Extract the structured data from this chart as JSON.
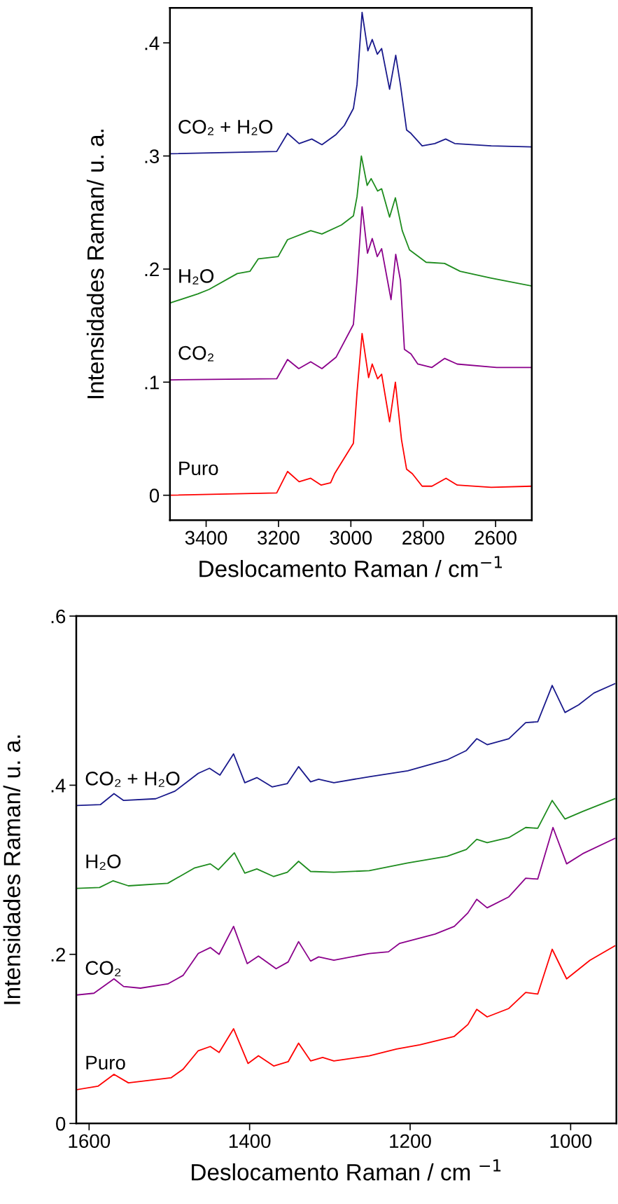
{
  "chart_data": [
    {
      "type": "line",
      "xlabel": "Deslocamento Raman / cm$^{−1}$",
      "ylabel": "Intensidades Raman/ u. a.",
      "xlim": [
        3500,
        2500
      ],
      "ylim": [
        -0.022,
        0.431
      ],
      "xticks": [
        3400,
        3200,
        3000,
        2800,
        2600
      ],
      "yticks": [
        0,
        {
          "value": 0.1,
          "label": ".1"
        },
        {
          "value": 0.2,
          "label": ".2"
        },
        {
          "value": 0.3,
          "label": ".3"
        },
        {
          "value": 0.4,
          "label": ".4"
        }
      ],
      "grid": false,
      "legend": false,
      "marker": "none",
      "line_style": "solid",
      "series": [
        {
          "name": "Puro",
          "color": "#ff0000",
          "x": [
            3500,
            3205,
            3175,
            3143,
            3111,
            3082,
            3056,
            3045,
            2993,
            2983,
            2969,
            2951,
            2941,
            2926,
            2915,
            2893,
            2877,
            2860,
            2846,
            2830,
            2803,
            2776,
            2737,
            2706,
            2612,
            2500
          ],
          "values": [
            0.0,
            0.002,
            0.021,
            0.012,
            0.015,
            0.009,
            0.011,
            0.019,
            0.046,
            0.091,
            0.143,
            0.104,
            0.116,
            0.103,
            0.107,
            0.065,
            0.1,
            0.049,
            0.023,
            0.019,
            0.008,
            0.008,
            0.015,
            0.009,
            0.007,
            0.008
          ]
        },
        {
          "name": "CO₂",
          "color": "#8b008b",
          "x": [
            3500,
            3205,
            3175,
            3144,
            3111,
            3080,
            3041,
            2993,
            2983,
            2969,
            2954,
            2941,
            2927,
            2915,
            2889,
            2876,
            2863,
            2852,
            2834,
            2815,
            2776,
            2741,
            2706,
            2597,
            2500
          ],
          "values": [
            0.102,
            0.103,
            0.12,
            0.112,
            0.118,
            0.112,
            0.122,
            0.151,
            0.19,
            0.255,
            0.214,
            0.227,
            0.211,
            0.218,
            0.173,
            0.213,
            0.19,
            0.129,
            0.125,
            0.116,
            0.113,
            0.121,
            0.116,
            0.113,
            0.113
          ]
        },
        {
          "name": "H₂O",
          "color": "#1e8c1e",
          "x": [
            3500,
            3423,
            3392,
            3314,
            3279,
            3256,
            3201,
            3175,
            3111,
            3080,
            3026,
            2993,
            2983,
            2971,
            2955,
            2944,
            2926,
            2915,
            2893,
            2877,
            2858,
            2838,
            2792,
            2741,
            2698,
            2612,
            2500
          ],
          "values": [
            0.17,
            0.178,
            0.182,
            0.196,
            0.198,
            0.209,
            0.211,
            0.226,
            0.234,
            0.231,
            0.239,
            0.247,
            0.264,
            0.3,
            0.274,
            0.28,
            0.269,
            0.271,
            0.246,
            0.263,
            0.234,
            0.217,
            0.206,
            0.205,
            0.198,
            0.192,
            0.185
          ]
        },
        {
          "name": "CO₂ + H₂O",
          "color": "#1a1a8c",
          "x": [
            3500,
            3205,
            3175,
            3143,
            3108,
            3080,
            3041,
            3018,
            2993,
            2983,
            2969,
            2953,
            2941,
            2927,
            2915,
            2893,
            2876,
            2863,
            2846,
            2834,
            2803,
            2768,
            2738,
            2713,
            2612,
            2500
          ],
          "values": [
            0.302,
            0.304,
            0.32,
            0.311,
            0.315,
            0.31,
            0.319,
            0.327,
            0.342,
            0.363,
            0.427,
            0.393,
            0.403,
            0.39,
            0.395,
            0.359,
            0.389,
            0.363,
            0.323,
            0.32,
            0.309,
            0.311,
            0.315,
            0.311,
            0.309,
            0.308
          ]
        }
      ]
    },
    {
      "type": "line",
      "xlabel": "Deslocamento Raman / cm $^{−1}$",
      "ylabel": "Intensidades Raman/ u. a.",
      "xlim": [
        1616,
        943
      ],
      "ylim": [
        0,
        0.6
      ],
      "xticks": [
        1600,
        1400,
        1200,
        1000
      ],
      "yticks": [
        0,
        {
          "value": 0.2,
          "label": ".2"
        },
        {
          "value": 0.4,
          "label": ".4"
        },
        {
          "value": 0.6,
          "label": ".6"
        }
      ],
      "grid": false,
      "legend": false,
      "marker": "none",
      "line_style": "solid",
      "series": [
        {
          "name": "Puro",
          "color": "#ff0000",
          "x": [
            1615,
            1589,
            1569,
            1551,
            1498,
            1483,
            1464,
            1449,
            1438,
            1420,
            1402,
            1389,
            1370,
            1352,
            1339,
            1324,
            1309,
            1295,
            1251,
            1217,
            1188,
            1145,
            1128,
            1117,
            1104,
            1077,
            1056,
            1041,
            1023,
            1005,
            976,
            945
          ],
          "values": [
            0.04,
            0.044,
            0.058,
            0.048,
            0.054,
            0.064,
            0.086,
            0.091,
            0.084,
            0.112,
            0.071,
            0.08,
            0.068,
            0.073,
            0.095,
            0.074,
            0.078,
            0.074,
            0.08,
            0.088,
            0.093,
            0.103,
            0.117,
            0.135,
            0.126,
            0.136,
            0.155,
            0.153,
            0.206,
            0.171,
            0.193,
            0.21
          ]
        },
        {
          "name": "CO₂",
          "color": "#8b008b",
          "x": [
            1615,
            1594,
            1569,
            1557,
            1536,
            1502,
            1483,
            1464,
            1449,
            1438,
            1420,
            1403,
            1389,
            1367,
            1352,
            1339,
            1324,
            1314,
            1295,
            1251,
            1227,
            1213,
            1169,
            1145,
            1128,
            1117,
            1104,
            1077,
            1056,
            1041,
            1022,
            1005,
            985,
            945
          ],
          "values": [
            0.152,
            0.154,
            0.171,
            0.162,
            0.16,
            0.165,
            0.175,
            0.201,
            0.208,
            0.2,
            0.233,
            0.189,
            0.198,
            0.183,
            0.191,
            0.215,
            0.192,
            0.197,
            0.193,
            0.201,
            0.203,
            0.213,
            0.224,
            0.233,
            0.249,
            0.265,
            0.255,
            0.268,
            0.29,
            0.289,
            0.35,
            0.307,
            0.319,
            0.337
          ]
        },
        {
          "name": "H₂O",
          "color": "#1e8c1e",
          "x": [
            1615,
            1587,
            1570,
            1551,
            1502,
            1469,
            1449,
            1439,
            1419,
            1406,
            1391,
            1370,
            1353,
            1339,
            1324,
            1295,
            1251,
            1203,
            1154,
            1130,
            1117,
            1104,
            1077,
            1056,
            1041,
            1023,
            1007,
            985,
            945
          ],
          "values": [
            0.278,
            0.279,
            0.287,
            0.281,
            0.284,
            0.302,
            0.307,
            0.3,
            0.32,
            0.296,
            0.301,
            0.292,
            0.297,
            0.31,
            0.298,
            0.297,
            0.299,
            0.308,
            0.316,
            0.324,
            0.336,
            0.332,
            0.338,
            0.35,
            0.349,
            0.382,
            0.36,
            0.369,
            0.384
          ]
        },
        {
          "name": "CO₂ + H₂O",
          "color": "#1a1a8c",
          "x": [
            1615,
            1586,
            1569,
            1557,
            1517,
            1493,
            1464,
            1450,
            1437,
            1420,
            1406,
            1391,
            1372,
            1353,
            1339,
            1324,
            1314,
            1295,
            1251,
            1203,
            1154,
            1130,
            1117,
            1104,
            1077,
            1056,
            1041,
            1023,
            1007,
            990,
            971,
            945
          ],
          "values": [
            0.376,
            0.377,
            0.39,
            0.382,
            0.384,
            0.393,
            0.414,
            0.42,
            0.412,
            0.437,
            0.403,
            0.409,
            0.398,
            0.402,
            0.422,
            0.404,
            0.407,
            0.403,
            0.41,
            0.417,
            0.43,
            0.441,
            0.455,
            0.448,
            0.455,
            0.474,
            0.475,
            0.518,
            0.486,
            0.495,
            0.509,
            0.52
          ]
        }
      ]
    }
  ]
}
